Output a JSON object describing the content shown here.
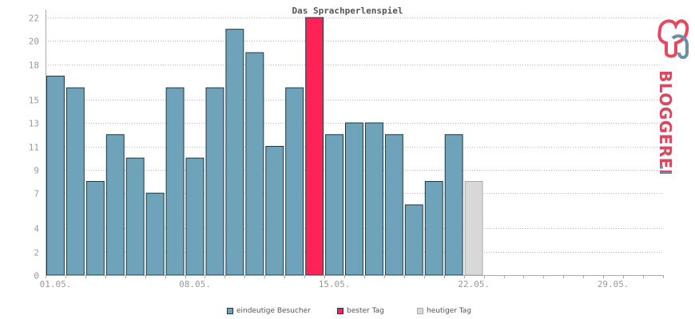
{
  "chart_data": {
    "type": "bar",
    "title": "Das Sprachperlenspiel",
    "x_tick_labels": [
      "01.05.",
      "08.05.",
      "15.05.",
      "22.05.",
      "29.05."
    ],
    "y_tick_labels": [
      "0",
      "2",
      "4",
      "7",
      "9",
      "11",
      "13",
      "15",
      "18",
      "20",
      "22"
    ],
    "ylim": [
      0,
      22
    ],
    "grid": true,
    "legend_position": "bottom",
    "series": [
      {
        "name": "eindeutige Besucher",
        "color": "#6ea3ba",
        "values": [
          17,
          16,
          8,
          12,
          10,
          7,
          16,
          10,
          16,
          21,
          19,
          11,
          16,
          null,
          12,
          13,
          13,
          12,
          6,
          8,
          12,
          null
        ]
      },
      {
        "name": "bester Tag",
        "color": "#ff2255",
        "values": [
          null,
          null,
          null,
          null,
          null,
          null,
          null,
          null,
          null,
          null,
          null,
          null,
          null,
          22,
          null,
          null,
          null,
          null,
          null,
          null,
          null,
          null
        ]
      },
      {
        "name": "heutiger Tag",
        "color": "#d8d8d8",
        "values": [
          null,
          null,
          null,
          null,
          null,
          null,
          null,
          null,
          null,
          null,
          null,
          null,
          null,
          null,
          null,
          null,
          null,
          null,
          null,
          null,
          null,
          8
        ]
      }
    ],
    "days_in_month": 31
  },
  "legend": [
    {
      "label": "eindeutige Besucher",
      "color": "#6ea3ba"
    },
    {
      "label": "bester Tag",
      "color": "#ff2255"
    },
    {
      "label": "heutiger Tag",
      "color": "#d8d8d8"
    }
  ],
  "logo": {
    "text_main": "BLOGGEREI",
    "text_tld": ".DE",
    "icon": "bloggerei-logo-icon"
  }
}
